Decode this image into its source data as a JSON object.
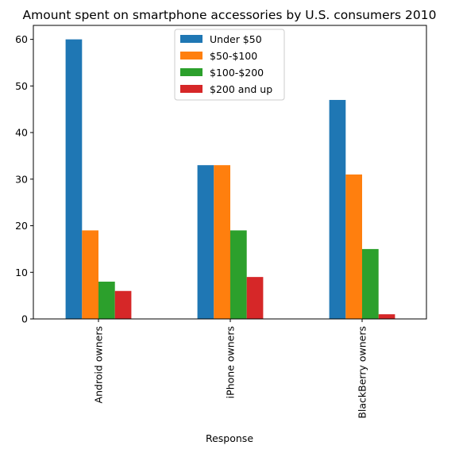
{
  "chart_data": {
    "type": "bar",
    "title": "Amount spent on smartphone accessories by U.S. consumers 2010",
    "xlabel": "Response",
    "ylabel": "",
    "categories": [
      "Android owners",
      "iPhone owners",
      "BlackBerry owners"
    ],
    "ylim": [
      0,
      63
    ],
    "yticks": [
      0,
      10,
      20,
      30,
      40,
      50,
      60
    ],
    "grid": false,
    "legend_position": "top-center",
    "series": [
      {
        "name": "Under $50",
        "color": "#1f77b4",
        "values": [
          60,
          33,
          47
        ]
      },
      {
        "name": "$50-$100",
        "color": "#ff7f0e",
        "values": [
          19,
          33,
          31
        ]
      },
      {
        "name": "$100-$200",
        "color": "#2ca02c",
        "values": [
          8,
          19,
          15
        ]
      },
      {
        "name": "$200 and up",
        "color": "#d62728",
        "values": [
          6,
          9,
          1
        ]
      }
    ]
  }
}
